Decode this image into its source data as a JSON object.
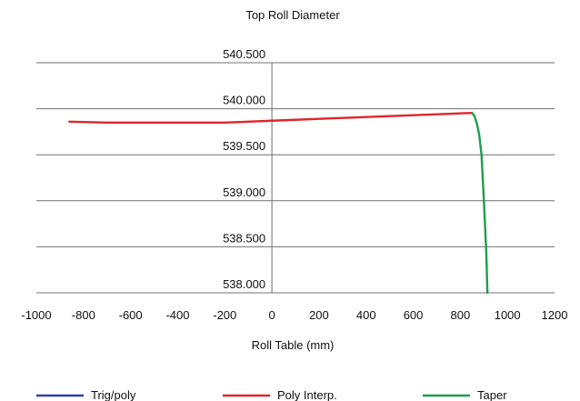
{
  "chart_data": {
    "type": "line",
    "title": "Top Roll Diameter",
    "xlabel": "Roll Table (mm)",
    "ylabel": "",
    "xlim": [
      -1000,
      1200
    ],
    "ylim": [
      538.0,
      540.5
    ],
    "x_ticks": [
      -1000,
      -800,
      -600,
      -400,
      -200,
      0,
      200,
      400,
      600,
      800,
      1000,
      1200
    ],
    "x_tick_labels": [
      "-1000",
      "-800",
      "-600",
      "-400",
      "-200",
      "0",
      "200",
      "400",
      "600",
      "800",
      "1000",
      "1200"
    ],
    "y_ticks": [
      538.0,
      538.5,
      539.0,
      539.5,
      540.0,
      540.5
    ],
    "y_tick_labels": [
      "538.000",
      "538.500",
      "539.000",
      "539.500",
      "540.000",
      "540.500"
    ],
    "grid": true,
    "legend_position": "bottom",
    "series": [
      {
        "name": "Trig/poly",
        "color": "#2b3fae",
        "x": [],
        "y": []
      },
      {
        "name": "Poly Interp.",
        "color": "#e0262a",
        "x": [
          -860,
          -700,
          -500,
          -300,
          -200,
          -100,
          0,
          100,
          200,
          300,
          400,
          500,
          600,
          700,
          800,
          850
        ],
        "y": [
          539.86,
          539.85,
          539.85,
          539.85,
          539.85,
          539.86,
          539.87,
          539.88,
          539.89,
          539.9,
          539.91,
          539.92,
          539.93,
          539.94,
          539.95,
          539.955
        ]
      },
      {
        "name": "Taper",
        "color": "#1e9e4a",
        "x": [
          850,
          860,
          870,
          880,
          890,
          900,
          910,
          915
        ],
        "y": [
          539.955,
          539.92,
          539.84,
          539.72,
          539.5,
          539.0,
          538.45,
          538.0
        ]
      }
    ]
  }
}
